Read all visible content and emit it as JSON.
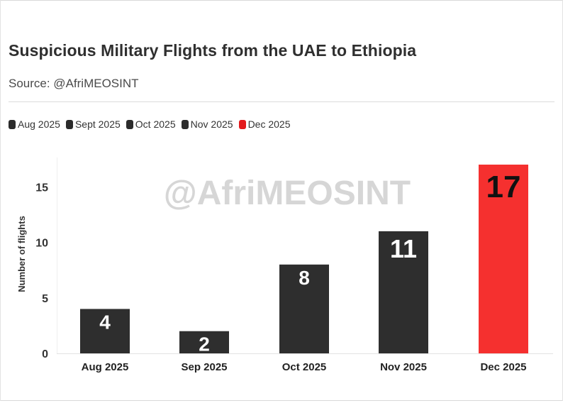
{
  "header": {
    "title": "Suspicious Military Flights from the UAE to Ethiopia",
    "subtitle": "Source: @AfriMEOSINT"
  },
  "legend": [
    {
      "label": "Aug 2025",
      "color": "#2b2b2b"
    },
    {
      "label": "Sept 2025",
      "color": "#2b2b2b"
    },
    {
      "label": "Oct 2025",
      "color": "#2b2b2b"
    },
    {
      "label": "Nov 2025",
      "color": "#2b2b2b"
    },
    {
      "label": "Dec 2025",
      "color": "#e31a1c"
    }
  ],
  "watermark": "@AfriMEOSINT",
  "chart_data": {
    "type": "bar",
    "title": "Suspicious Military Flights from the UAE to Ethiopia",
    "xlabel": "",
    "ylabel": "Number of flights",
    "categories": [
      "Aug 2025",
      "Sep 2025",
      "Oct 2025",
      "Nov 2025",
      "Dec 2025"
    ],
    "values": [
      4,
      2,
      8,
      11,
      17
    ],
    "data_labels": [
      "4",
      "2",
      "8",
      "11",
      "17"
    ],
    "colors": [
      "#2e2e2e",
      "#2e2e2e",
      "#2e2e2e",
      "#2e2e2e",
      "#f5302f"
    ],
    "label_colors": [
      "#ffffff",
      "#ffffff",
      "#ffffff",
      "#ffffff",
      "#111111"
    ],
    "yticks": [
      0,
      5,
      10,
      15
    ],
    "ylim": [
      0,
      17
    ],
    "grid": false,
    "legend_position": "top-left"
  }
}
